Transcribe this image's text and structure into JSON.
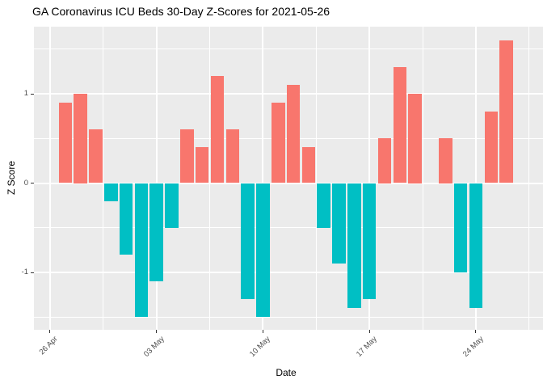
{
  "chart_data": {
    "type": "bar",
    "title": "GA Coronavirus ICU Beds 30-Day Z-Scores for 2021-05-26",
    "xlabel": "Date",
    "ylabel": "Z Score",
    "x_dates": [
      "2021-04-27",
      "2021-04-28",
      "2021-04-29",
      "2021-04-30",
      "2021-05-01",
      "2021-05-02",
      "2021-05-03",
      "2021-05-04",
      "2021-05-05",
      "2021-05-06",
      "2021-05-07",
      "2021-05-08",
      "2021-05-09",
      "2021-05-10",
      "2021-05-11",
      "2021-05-12",
      "2021-05-13",
      "2021-05-14",
      "2021-05-15",
      "2021-05-16",
      "2021-05-17",
      "2021-05-18",
      "2021-05-19",
      "2021-05-20",
      "2021-05-21",
      "2021-05-22",
      "2021-05-23",
      "2021-05-24",
      "2021-05-25",
      "2021-05-26"
    ],
    "values": [
      0.9,
      1.0,
      0.6,
      -0.2,
      -0.8,
      -1.5,
      -1.1,
      -0.5,
      0.6,
      0.4,
      1.2,
      0.6,
      -1.3,
      -1.5,
      0.9,
      1.1,
      0.4,
      -0.5,
      -0.9,
      -1.4,
      -1.3,
      0.5,
      1.3,
      1.0,
      0,
      0.5,
      -1.0,
      -1.4,
      0.8,
      1.6
    ],
    "ylim": [
      -1.65,
      1.75
    ],
    "y_major_ticks": [
      {
        "value": 1,
        "label": "1"
      },
      {
        "value": 0,
        "label": "0"
      },
      {
        "value": -1,
        "label": "-1"
      }
    ],
    "y_minor_ticks": [
      1.5,
      0.5,
      -0.5,
      -1.5
    ],
    "x_major_ticks": [
      {
        "label": "26 Apr",
        "day": -1
      },
      {
        "label": "03 May",
        "day": 6
      },
      {
        "label": "10 May",
        "day": 13
      },
      {
        "label": "17 May",
        "day": 20
      },
      {
        "label": "24 May",
        "day": 27
      }
    ],
    "x_minor_days": [
      2.5,
      9.5,
      16.5,
      23.5,
      30.5
    ],
    "grid": true,
    "legend": "none",
    "positive_color": "#F8766D",
    "negative_color": "#00BFC4",
    "panel_bg": "#EBEBEB",
    "grid_color": "#FFFFFF"
  }
}
